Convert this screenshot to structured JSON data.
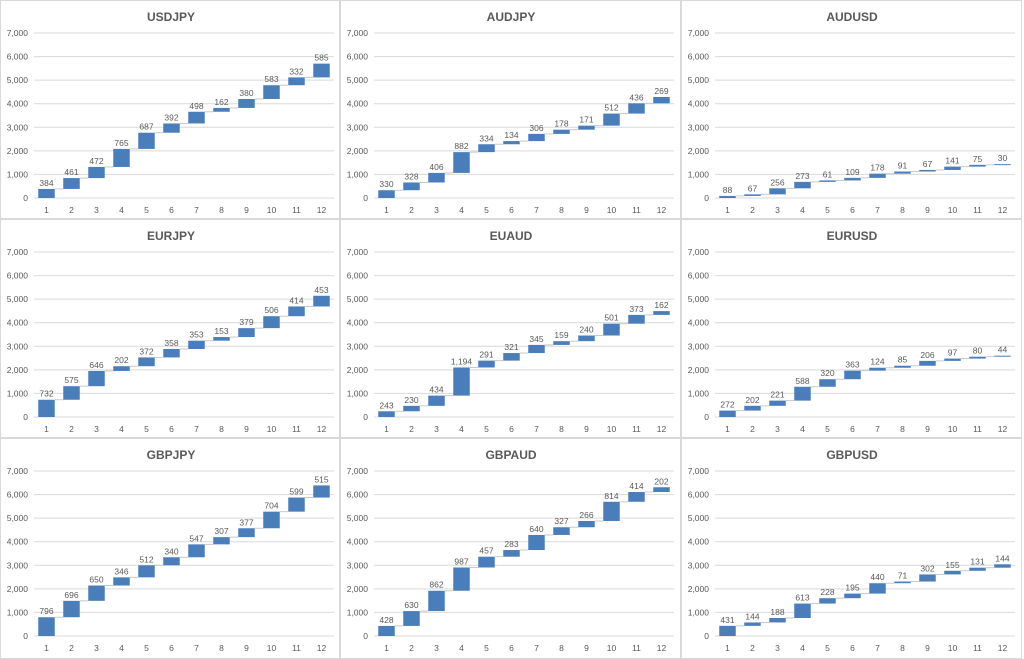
{
  "colors": {
    "bar": "#4a7ebb",
    "grid": "#d9d9d9",
    "connector": "#c8c8c8",
    "text": "#595959"
  },
  "chart_data": [
    {
      "type": "waterfall",
      "title": "USDJPY",
      "categories": [
        "1",
        "2",
        "3",
        "4",
        "5",
        "6",
        "7",
        "8",
        "9",
        "10",
        "11",
        "12"
      ],
      "values": [
        384,
        461,
        472,
        765,
        687,
        392,
        498,
        162,
        380,
        583,
        332,
        585
      ],
      "ylim": [
        0,
        7000
      ],
      "yticks": [
        "0",
        "1,000",
        "2,000",
        "3,000",
        "4,000",
        "5,000",
        "6,000",
        "7,000"
      ]
    },
    {
      "type": "waterfall",
      "title": "AUDJPY",
      "categories": [
        "1",
        "2",
        "3",
        "4",
        "5",
        "6",
        "7",
        "8",
        "9",
        "10",
        "11",
        "12"
      ],
      "values": [
        330,
        328,
        406,
        882,
        334,
        134,
        306,
        178,
        171,
        512,
        436,
        269
      ],
      "ylim": [
        0,
        7000
      ],
      "yticks": [
        "0",
        "1,000",
        "2,000",
        "3,000",
        "4,000",
        "5,000",
        "6,000",
        "7,000"
      ]
    },
    {
      "type": "waterfall",
      "title": "AUDUSD",
      "categories": [
        "1",
        "2",
        "3",
        "4",
        "5",
        "6",
        "7",
        "8",
        "9",
        "10",
        "11",
        "12"
      ],
      "values": [
        88,
        67,
        256,
        273,
        61,
        109,
        178,
        91,
        67,
        141,
        75,
        30
      ],
      "ylim": [
        0,
        7000
      ],
      "yticks": [
        "0",
        "1,000",
        "2,000",
        "3,000",
        "4,000",
        "5,000",
        "6,000",
        "7,000"
      ]
    },
    {
      "type": "waterfall",
      "title": "EURJPY",
      "categories": [
        "1",
        "2",
        "3",
        "4",
        "5",
        "6",
        "7",
        "8",
        "9",
        "10",
        "11",
        "12"
      ],
      "values": [
        732,
        575,
        646,
        202,
        372,
        358,
        353,
        153,
        379,
        506,
        414,
        453
      ],
      "ylim": [
        0,
        7000
      ],
      "yticks": [
        "0",
        "1,000",
        "2,000",
        "3,000",
        "4,000",
        "5,000",
        "6,000",
        "7,000"
      ]
    },
    {
      "type": "waterfall",
      "title": "EUAUD",
      "categories": [
        "1",
        "2",
        "3",
        "4",
        "5",
        "6",
        "7",
        "8",
        "9",
        "10",
        "11",
        "12"
      ],
      "values": [
        243,
        230,
        434,
        1194,
        291,
        321,
        345,
        159,
        240,
        501,
        373,
        162
      ],
      "value_labels": [
        "243",
        "230",
        "434",
        "1,194",
        "291",
        "321",
        "345",
        "159",
        "240",
        "501",
        "373",
        "162"
      ],
      "ylim": [
        0,
        7000
      ],
      "yticks": [
        "0",
        "1,000",
        "2,000",
        "3,000",
        "4,000",
        "5,000",
        "6,000",
        "7,000"
      ]
    },
    {
      "type": "waterfall",
      "title": "EURUSD",
      "categories": [
        "1",
        "2",
        "3",
        "4",
        "5",
        "6",
        "7",
        "8",
        "9",
        "10",
        "11",
        "12"
      ],
      "values": [
        272,
        202,
        221,
        588,
        320,
        363,
        124,
        85,
        206,
        97,
        80,
        44
      ],
      "ylim": [
        0,
        7000
      ],
      "yticks": [
        "0",
        "1,000",
        "2,000",
        "3,000",
        "4,000",
        "5,000",
        "6,000",
        "7,000"
      ]
    },
    {
      "type": "waterfall",
      "title": "GBPJPY",
      "categories": [
        "1",
        "2",
        "3",
        "4",
        "5",
        "6",
        "7",
        "8",
        "9",
        "10",
        "11",
        "12"
      ],
      "values": [
        796,
        696,
        650,
        346,
        512,
        340,
        547,
        307,
        377,
        704,
        599,
        515
      ],
      "ylim": [
        0,
        7000
      ],
      "yticks": [
        "0",
        "1,000",
        "2,000",
        "3,000",
        "4,000",
        "5,000",
        "6,000",
        "7,000"
      ]
    },
    {
      "type": "waterfall",
      "title": "GBPAUD",
      "categories": [
        "1",
        "2",
        "3",
        "4",
        "5",
        "6",
        "7",
        "8",
        "9",
        "10",
        "11",
        "12"
      ],
      "values": [
        428,
        630,
        862,
        987,
        457,
        283,
        640,
        327,
        266,
        814,
        414,
        202
      ],
      "ylim": [
        0,
        7000
      ],
      "yticks": [
        "0",
        "1,000",
        "2,000",
        "3,000",
        "4,000",
        "5,000",
        "6,000",
        "7,000"
      ]
    },
    {
      "type": "waterfall",
      "title": "GBPUSD",
      "categories": [
        "1",
        "2",
        "3",
        "4",
        "5",
        "6",
        "7",
        "8",
        "9",
        "10",
        "11",
        "12"
      ],
      "values": [
        431,
        144,
        188,
        613,
        228,
        195,
        440,
        71,
        302,
        155,
        131,
        144
      ],
      "ylim": [
        0,
        7000
      ],
      "yticks": [
        "0",
        "1,000",
        "2,000",
        "3,000",
        "4,000",
        "5,000",
        "6,000",
        "7,000"
      ]
    }
  ]
}
